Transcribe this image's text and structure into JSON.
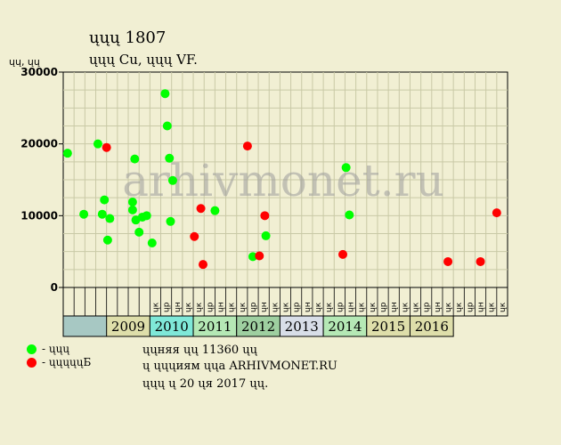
{
  "colors": {
    "background": "#f1efd3",
    "grid": "#c9c9a6",
    "sale": "#00ff00",
    "unsold": "#ff0000",
    "watermark": "#9a9a9a"
  },
  "header": {
    "title": "ųųų 1807",
    "subtitle": "ųųų Cu, ųųų VF."
  },
  "watermark": "arhivmonet.ru",
  "info": {
    "line1": "ųųняя ųų 11360 ųų",
    "line2": "ų ųųųиям ųųa ARHIVMONET.RU",
    "line3": "ųųų ų 20 ųя 2017 ųų."
  },
  "legend": {
    "sold_label": "- ųųų",
    "unsold_label": "- ųųųųųБ"
  },
  "chart_data": {
    "type": "scatter",
    "ylabel": "ųų, ųų",
    "ylim": [
      0,
      30000
    ],
    "yticks": [
      0,
      10000,
      20000,
      30000
    ],
    "grid": true,
    "quarter_labels": [
      "ųк",
      "ųр",
      "ųн",
      "ųк",
      "ųк",
      "ųр",
      "ųн",
      "ųк",
      "ųк",
      "ųр",
      "ųн",
      "ųк",
      "ųк",
      "ųр",
      "ųн",
      "ųк",
      "ųк",
      "ųр",
      "ųн",
      "ųк",
      "ųк",
      "ųр",
      "ųн",
      "ųк",
      "ųк",
      "ųр",
      "ųн",
      "ųк",
      "ųк",
      "ųр",
      "ųн",
      "ųк",
      "ųк"
    ],
    "years": [
      {
        "label": "2009",
        "color": "#dedeaa"
      },
      {
        "label": "2010",
        "color": "#7fe8d8"
      },
      {
        "label": "2011",
        "color": "#b5e8b5"
      },
      {
        "label": "2012",
        "color": "#9ecfa0"
      },
      {
        "label": "2013",
        "color": "#d8dee8"
      },
      {
        "label": "2014",
        "color": "#b5e8b5"
      },
      {
        "label": "2015",
        "color": "#dedeaa"
      },
      {
        "label": "2016",
        "color": "#dedeaa"
      }
    ],
    "series": [
      {
        "name": "- ųųų",
        "color": "#00ff00",
        "points": [
          [
            0.4,
            18700
          ],
          [
            1.9,
            10200
          ],
          [
            3.2,
            20000
          ],
          [
            3.6,
            10200
          ],
          [
            3.8,
            12200
          ],
          [
            4.1,
            6600
          ],
          [
            4.3,
            9600
          ],
          [
            6.4,
            11900
          ],
          [
            6.4,
            10800
          ],
          [
            6.6,
            17900
          ],
          [
            6.7,
            9400
          ],
          [
            7.0,
            7700
          ],
          [
            7.3,
            9800
          ],
          [
            7.7,
            10000
          ],
          [
            8.2,
            6200
          ],
          [
            9.4,
            27000
          ],
          [
            9.6,
            22500
          ],
          [
            9.8,
            18000
          ],
          [
            9.9,
            9200
          ],
          [
            10.1,
            14900
          ],
          [
            14.0,
            10700
          ],
          [
            17.5,
            4300
          ],
          [
            18.7,
            7200
          ],
          [
            26.1,
            16700
          ],
          [
            26.4,
            10100
          ]
        ]
      },
      {
        "name": "- ųųųųųБ",
        "color": "#ff0000",
        "points": [
          [
            4.0,
            19500
          ],
          [
            12.1,
            7100
          ],
          [
            12.7,
            11000
          ],
          [
            12.9,
            3200
          ],
          [
            17.0,
            19700
          ],
          [
            18.1,
            4400
          ],
          [
            18.6,
            10000
          ],
          [
            25.8,
            4600
          ],
          [
            35.5,
            3600
          ],
          [
            38.5,
            3600
          ],
          [
            40.0,
            10400
          ]
        ]
      }
    ]
  }
}
